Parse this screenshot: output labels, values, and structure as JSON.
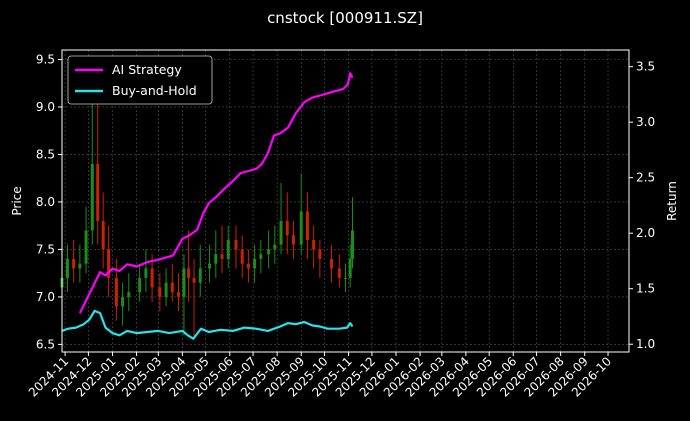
{
  "chart_data": {
    "type": "line",
    "title": "cnstock [000911.SZ]",
    "ylabel": "Price",
    "y2label": "Return",
    "ylim": [
      6.42,
      9.6
    ],
    "y2lim": [
      0.93,
      3.65
    ],
    "yticks": [
      6.5,
      7.0,
      7.5,
      8.0,
      8.5,
      9.0,
      9.5
    ],
    "y2ticks": [
      1.0,
      1.5,
      2.0,
      2.5,
      3.0,
      3.5
    ],
    "ytick_labels": [
      "6.5",
      "7.0",
      "7.5",
      "8.0",
      "8.5",
      "9.0",
      "9.5"
    ],
    "y2tick_labels": [
      "1.0",
      "1.5",
      "2.0",
      "2.5",
      "3.0",
      "3.5"
    ],
    "xlim": [
      "2024-10-28",
      "2026-10-28"
    ],
    "x_tick_labels": [
      "2024-11",
      "2024-12",
      "2025-01",
      "2025-02",
      "2025-03",
      "2025-04",
      "2025-05",
      "2025-06",
      "2025-07",
      "2025-08",
      "2025-09",
      "2025-10",
      "2025-11",
      "2025-12",
      "2026-01",
      "2026-02",
      "2026-03",
      "2026-04",
      "2026-05",
      "2026-06",
      "2026-07",
      "2026-08",
      "2026-09",
      "2026-10"
    ],
    "x_tick_dates": [
      "2024-11-01",
      "2024-12-01",
      "2025-01-01",
      "2025-02-01",
      "2025-03-01",
      "2025-04-01",
      "2025-05-01",
      "2025-06-01",
      "2025-07-01",
      "2025-08-01",
      "2025-09-01",
      "2025-10-01",
      "2025-11-01",
      "2025-12-01",
      "2026-01-01",
      "2026-02-01",
      "2026-03-01",
      "2026-04-01",
      "2026-05-01",
      "2026-06-01",
      "2026-07-01",
      "2026-08-01",
      "2026-09-01",
      "2026-10-01"
    ],
    "grid": true,
    "legend_position": "top-left",
    "colors": {
      "up": "#1a8f1a",
      "down": "#cc2200",
      "ai": "#ff00ff",
      "bh": "#22e5ee"
    },
    "price": {
      "axis": "left",
      "dates": [
        "2024-10-28",
        "2024-11-04",
        "2024-11-12",
        "2024-11-20",
        "2024-11-28",
        "2024-12-06",
        "2024-12-13",
        "2024-12-20",
        "2024-12-27",
        "2025-01-06",
        "2025-01-14",
        "2025-01-22",
        "2025-02-05",
        "2025-02-13",
        "2025-02-21",
        "2025-03-03",
        "2025-03-11",
        "2025-03-19",
        "2025-03-27",
        "2025-04-03",
        "2025-04-09",
        "2025-04-16",
        "2025-04-24",
        "2025-05-06",
        "2025-05-14",
        "2025-05-22",
        "2025-05-30",
        "2025-06-09",
        "2025-06-17",
        "2025-06-25",
        "2025-07-03",
        "2025-07-11",
        "2025-07-21",
        "2025-07-29",
        "2025-08-06",
        "2025-08-14",
        "2025-08-22",
        "2025-09-01",
        "2025-09-09",
        "2025-09-17",
        "2025-09-25",
        "2025-10-10",
        "2025-10-20",
        "2025-10-28",
        "2025-11-03",
        "2025-11-06"
      ],
      "open": [
        7.1,
        7.2,
        7.4,
        7.3,
        7.35,
        7.7,
        8.4,
        7.8,
        7.5,
        7.2,
        6.9,
        7.0,
        7.05,
        7.2,
        7.3,
        7.1,
        7.0,
        7.15,
        7.05,
        7.0,
        7.3,
        7.2,
        7.15,
        7.3,
        7.35,
        7.45,
        7.4,
        7.6,
        7.5,
        7.35,
        7.3,
        7.4,
        7.45,
        7.5,
        7.55,
        7.8,
        7.65,
        7.55,
        7.9,
        7.6,
        7.5,
        7.4,
        7.3,
        7.2,
        7.2,
        7.4
      ],
      "close": [
        7.2,
        7.4,
        7.3,
        7.35,
        7.7,
        8.4,
        7.8,
        7.5,
        7.2,
        6.9,
        7.0,
        7.05,
        7.2,
        7.3,
        7.1,
        7.0,
        7.15,
        7.05,
        7.0,
        7.3,
        7.2,
        7.15,
        7.3,
        7.35,
        7.45,
        7.4,
        7.6,
        7.5,
        7.35,
        7.3,
        7.4,
        7.45,
        7.5,
        7.55,
        7.8,
        7.65,
        7.55,
        7.9,
        7.6,
        7.5,
        7.4,
        7.3,
        7.2,
        7.2,
        7.4,
        7.7
      ],
      "high": [
        7.35,
        7.55,
        7.6,
        7.55,
        7.95,
        9.4,
        9.1,
        8.1,
        7.75,
        7.4,
        7.15,
        7.25,
        7.35,
        7.5,
        7.45,
        7.25,
        7.3,
        7.35,
        7.25,
        7.45,
        7.7,
        7.4,
        7.55,
        7.55,
        7.7,
        7.75,
        7.75,
        7.75,
        7.65,
        7.5,
        7.55,
        7.6,
        7.7,
        7.75,
        8.2,
        8.1,
        7.8,
        8.3,
        8.1,
        7.75,
        7.6,
        7.55,
        7.45,
        7.35,
        7.55,
        8.05
      ],
      "low": [
        6.95,
        7.05,
        7.15,
        7.15,
        7.25,
        7.55,
        7.55,
        7.3,
        7.0,
        6.75,
        6.7,
        6.85,
        6.95,
        7.05,
        6.95,
        6.85,
        6.9,
        6.95,
        6.85,
        6.6,
        6.95,
        6.55,
        7.0,
        7.15,
        7.2,
        7.25,
        7.3,
        7.3,
        7.2,
        7.15,
        7.15,
        7.25,
        7.3,
        7.35,
        7.45,
        7.45,
        7.4,
        7.45,
        7.4,
        7.3,
        7.2,
        7.15,
        7.1,
        7.05,
        7.1,
        7.3
      ]
    },
    "series": [
      {
        "name": "AI Strategy",
        "axis": "right",
        "color": "#ff00ff",
        "dates": [
          "2024-11-20",
          "2024-11-25",
          "2024-12-02",
          "2024-12-09",
          "2024-12-16",
          "2024-12-23",
          "2025-01-01",
          "2025-01-10",
          "2025-01-20",
          "2025-02-01",
          "2025-02-15",
          "2025-03-01",
          "2025-03-20",
          "2025-04-01",
          "2025-04-10",
          "2025-04-20",
          "2025-04-28",
          "2025-05-05",
          "2025-05-15",
          "2025-05-25",
          "2025-06-05",
          "2025-06-15",
          "2025-06-25",
          "2025-07-05",
          "2025-07-12",
          "2025-07-20",
          "2025-07-28",
          "2025-08-05",
          "2025-08-15",
          "2025-08-25",
          "2025-09-05",
          "2025-09-15",
          "2025-09-25",
          "2025-10-05",
          "2025-10-15",
          "2025-10-25",
          "2025-10-31",
          "2025-11-03",
          "2025-11-06"
        ],
        "values": [
          1.28,
          1.35,
          1.45,
          1.55,
          1.65,
          1.62,
          1.68,
          1.66,
          1.72,
          1.7,
          1.74,
          1.76,
          1.8,
          1.95,
          1.98,
          2.03,
          2.18,
          2.27,
          2.33,
          2.4,
          2.47,
          2.54,
          2.56,
          2.58,
          2.62,
          2.72,
          2.88,
          2.9,
          2.95,
          3.08,
          3.18,
          3.22,
          3.24,
          3.26,
          3.28,
          3.3,
          3.34,
          3.44,
          3.4
        ]
      },
      {
        "name": "Buy-and-Hold",
        "axis": "right",
        "color": "#22e5ee",
        "dates": [
          "2024-10-28",
          "2024-11-05",
          "2024-11-15",
          "2024-11-25",
          "2024-12-02",
          "2024-12-09",
          "2024-12-16",
          "2024-12-23",
          "2025-01-01",
          "2025-01-10",
          "2025-01-20",
          "2025-02-01",
          "2025-02-15",
          "2025-03-01",
          "2025-03-15",
          "2025-04-01",
          "2025-04-08",
          "2025-04-15",
          "2025-04-25",
          "2025-05-05",
          "2025-05-20",
          "2025-06-05",
          "2025-06-20",
          "2025-07-05",
          "2025-07-20",
          "2025-08-05",
          "2025-08-15",
          "2025-08-25",
          "2025-09-05",
          "2025-09-15",
          "2025-09-25",
          "2025-10-05",
          "2025-10-20",
          "2025-10-30",
          "2025-11-03",
          "2025-11-06"
        ],
        "values": [
          1.12,
          1.14,
          1.15,
          1.18,
          1.22,
          1.3,
          1.28,
          1.15,
          1.1,
          1.08,
          1.12,
          1.1,
          1.11,
          1.12,
          1.1,
          1.12,
          1.08,
          1.05,
          1.14,
          1.11,
          1.13,
          1.12,
          1.15,
          1.14,
          1.12,
          1.16,
          1.19,
          1.18,
          1.2,
          1.17,
          1.16,
          1.14,
          1.14,
          1.15,
          1.19,
          1.16
        ]
      }
    ]
  }
}
